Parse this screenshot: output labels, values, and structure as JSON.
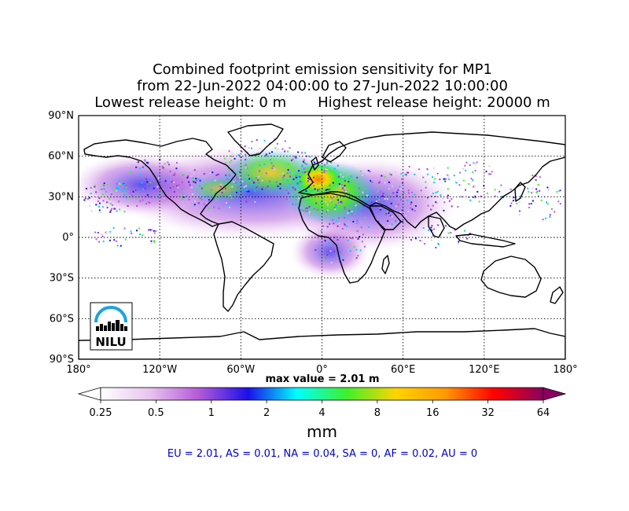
{
  "title": {
    "line1": "Combined footprint emission sensitivity for MP1",
    "line2": "from 22-Jun-2022 04:00:00 to 27-Jun-2022 10:00:00",
    "line3a": "Lowest release height: 0 m",
    "line3b": "Highest release height: 20000 m"
  },
  "map": {
    "lat_labels": [
      "90°N",
      "60°N",
      "30°N",
      "0°",
      "30°S",
      "60°S",
      "90°S"
    ],
    "lon_labels": [
      "180°",
      "120°W",
      "60°W",
      "0°",
      "60°E",
      "120°E",
      "180°"
    ],
    "max_value_label": "max value = 2.01 m",
    "logo_text": "NILU"
  },
  "colorbar": {
    "ticks": [
      "0.25",
      "0.5",
      "1",
      "2",
      "4",
      "8",
      "16",
      "32",
      "64"
    ],
    "unit": "mm",
    "colors": [
      "#ffffff",
      "#e9c3ee",
      "#b35ad8",
      "#1b10e8",
      "#00ffff",
      "#3ff02a",
      "#ffd400",
      "#ff9a00",
      "#ff0000",
      "#8a0060"
    ]
  },
  "footer": "EU = 2.01,  AS = 0.01,  NA = 0.04,  SA = 0,  AF = 0.02,  AU = 0"
}
